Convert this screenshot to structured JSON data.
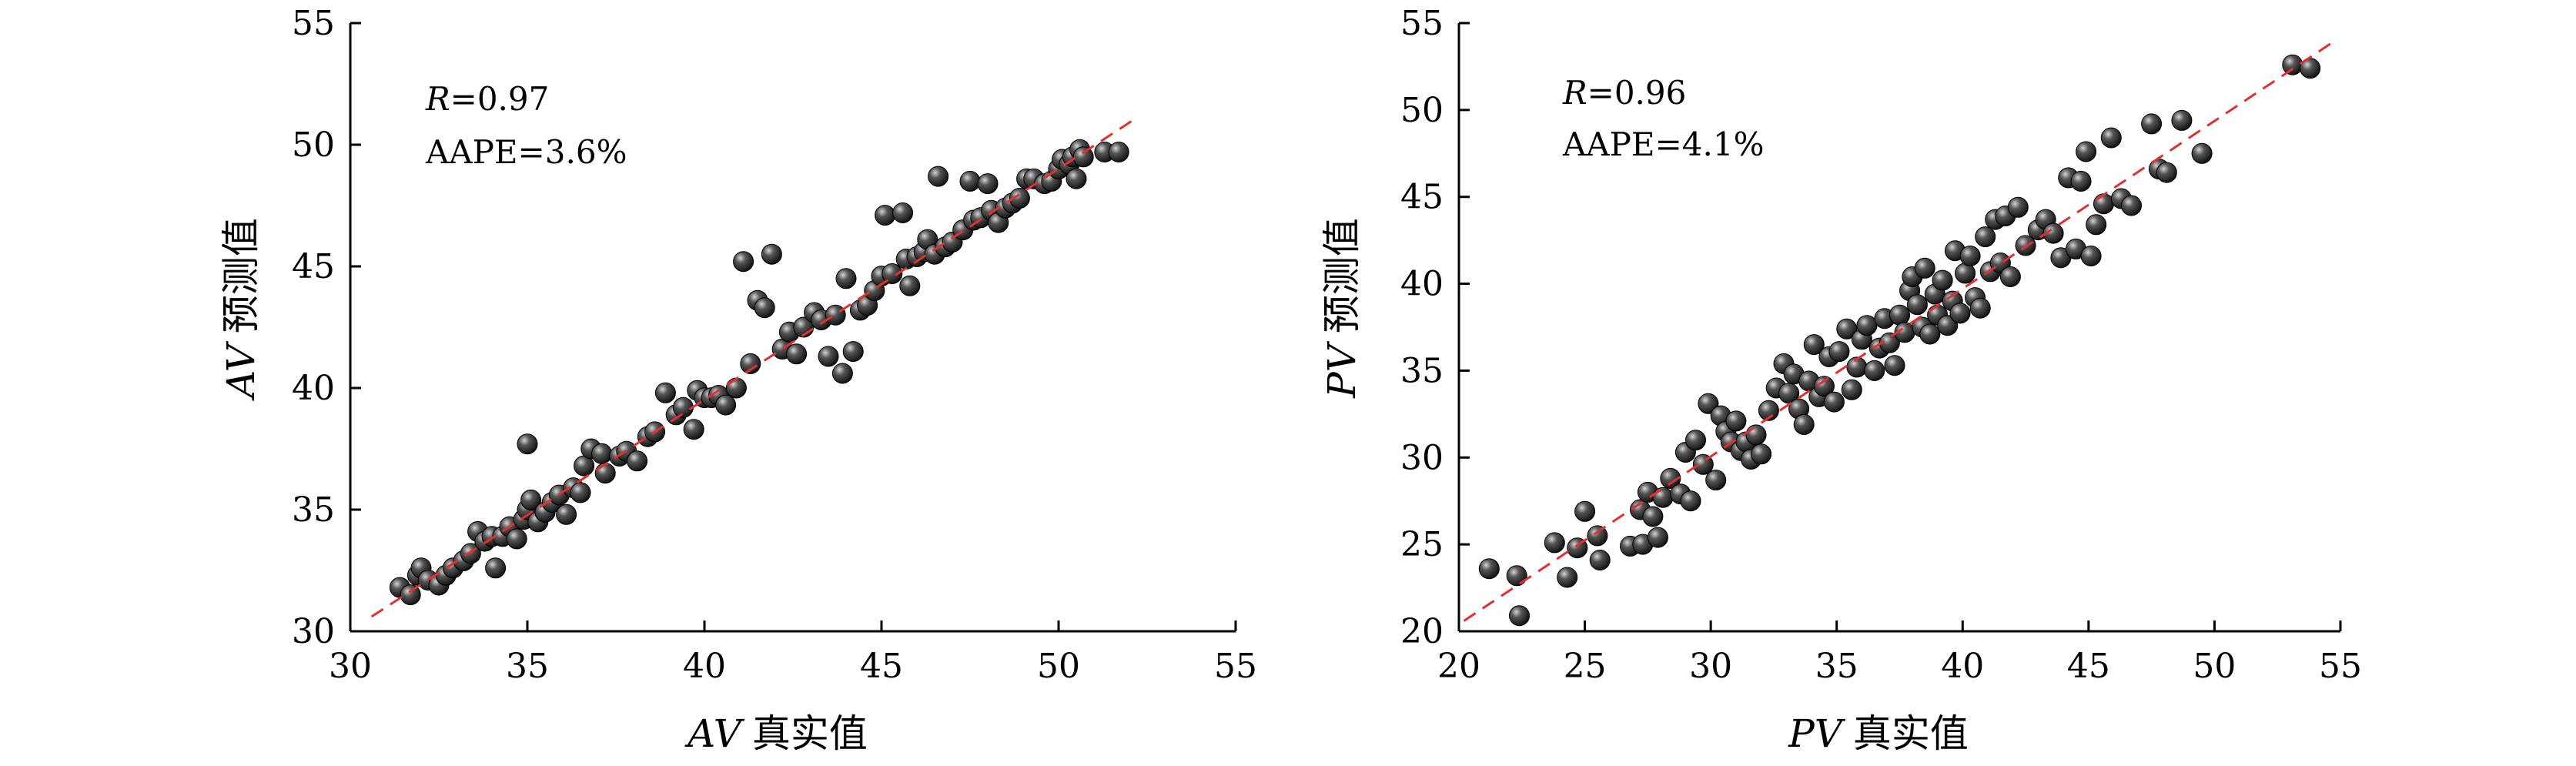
{
  "chart_data": [
    {
      "type": "scatter",
      "xlabel_var": "AV",
      "xlabel_text": "真实值",
      "ylabel_var": "AV",
      "ylabel_text": "预测值",
      "annotation_r_var": "R",
      "annotation_r_value": "=0.97",
      "annotation_aape": "AAPE=3.6%",
      "xlim": [
        30,
        55
      ],
      "ylim": [
        30,
        55
      ],
      "xticks": [
        30,
        35,
        40,
        45,
        50,
        55
      ],
      "yticks": [
        30,
        35,
        40,
        45,
        50,
        55
      ],
      "grid": false,
      "fit_line": {
        "style": "dashed",
        "color": "#e0312f",
        "from": [
          30.6,
          30.6
        ],
        "to": [
          52.2,
          51.1
        ]
      },
      "points": [
        [
          31.4,
          31.8
        ],
        [
          31.7,
          31.5
        ],
        [
          31.9,
          32.3
        ],
        [
          32.0,
          32.6
        ],
        [
          32.2,
          32.1
        ],
        [
          32.5,
          31.9
        ],
        [
          32.7,
          32.3
        ],
        [
          32.9,
          32.6
        ],
        [
          33.2,
          32.9
        ],
        [
          33.4,
          33.2
        ],
        [
          33.6,
          34.1
        ],
        [
          33.8,
          33.7
        ],
        [
          34.0,
          33.9
        ],
        [
          34.1,
          32.6
        ],
        [
          34.3,
          33.9
        ],
        [
          34.5,
          34.3
        ],
        [
          34.7,
          33.8
        ],
        [
          34.9,
          34.6
        ],
        [
          35.0,
          35.0
        ],
        [
          35.1,
          35.4
        ],
        [
          35.0,
          37.7
        ],
        [
          35.3,
          34.5
        ],
        [
          35.5,
          34.9
        ],
        [
          35.7,
          35.3
        ],
        [
          35.9,
          35.6
        ],
        [
          36.1,
          34.8
        ],
        [
          36.3,
          35.9
        ],
        [
          36.5,
          35.7
        ],
        [
          36.6,
          36.8
        ],
        [
          36.8,
          37.5
        ],
        [
          37.1,
          37.3
        ],
        [
          37.2,
          36.5
        ],
        [
          37.6,
          37.2
        ],
        [
          37.8,
          37.4
        ],
        [
          38.1,
          37.0
        ],
        [
          38.4,
          38.0
        ],
        [
          38.6,
          38.2
        ],
        [
          38.9,
          39.8
        ],
        [
          39.2,
          38.9
        ],
        [
          39.4,
          39.2
        ],
        [
          39.7,
          38.3
        ],
        [
          39.8,
          39.9
        ],
        [
          40.0,
          39.6
        ],
        [
          40.2,
          39.6
        ],
        [
          40.4,
          39.7
        ],
        [
          40.6,
          39.3
        ],
        [
          40.9,
          40.0
        ],
        [
          41.1,
          45.2
        ],
        [
          41.3,
          41.0
        ],
        [
          41.5,
          43.6
        ],
        [
          41.7,
          43.3
        ],
        [
          41.9,
          45.5
        ],
        [
          42.2,
          41.6
        ],
        [
          42.4,
          42.3
        ],
        [
          42.6,
          41.4
        ],
        [
          42.8,
          42.5
        ],
        [
          43.1,
          43.1
        ],
        [
          43.3,
          42.8
        ],
        [
          43.5,
          41.3
        ],
        [
          43.7,
          43.0
        ],
        [
          43.9,
          40.6
        ],
        [
          44.0,
          44.5
        ],
        [
          44.2,
          41.5
        ],
        [
          44.4,
          43.2
        ],
        [
          44.6,
          43.4
        ],
        [
          44.8,
          44.0
        ],
        [
          45.0,
          44.6
        ],
        [
          45.1,
          47.1
        ],
        [
          45.3,
          44.7
        ],
        [
          45.6,
          47.2
        ],
        [
          45.7,
          45.3
        ],
        [
          45.8,
          44.2
        ],
        [
          46.0,
          45.4
        ],
        [
          46.2,
          45.6
        ],
        [
          46.3,
          46.1
        ],
        [
          46.5,
          45.5
        ],
        [
          46.6,
          48.7
        ],
        [
          46.8,
          45.8
        ],
        [
          47.0,
          46.0
        ],
        [
          47.3,
          46.5
        ],
        [
          47.5,
          48.5
        ],
        [
          47.6,
          46.9
        ],
        [
          47.8,
          47.0
        ],
        [
          48.0,
          48.4
        ],
        [
          48.1,
          47.3
        ],
        [
          48.3,
          46.8
        ],
        [
          48.5,
          47.4
        ],
        [
          48.7,
          47.6
        ],
        [
          48.9,
          47.8
        ],
        [
          49.1,
          48.6
        ],
        [
          49.3,
          48.6
        ],
        [
          49.6,
          48.4
        ],
        [
          49.8,
          48.5
        ],
        [
          50.0,
          49.0
        ],
        [
          50.1,
          49.4
        ],
        [
          50.3,
          49.2
        ],
        [
          50.4,
          49.5
        ],
        [
          50.5,
          48.6
        ],
        [
          50.6,
          49.8
        ],
        [
          50.7,
          49.5
        ],
        [
          51.3,
          49.7
        ],
        [
          51.7,
          49.7
        ]
      ]
    },
    {
      "type": "scatter",
      "xlabel_var": "PV",
      "xlabel_text": "真实值",
      "ylabel_var": "PV",
      "ylabel_text": "预测值",
      "annotation_r_var": "R",
      "annotation_r_value": "=0.96",
      "annotation_aape": "AAPE=4.1%",
      "xlim": [
        20,
        55
      ],
      "ylim": [
        20,
        55
      ],
      "xticks": [
        20,
        25,
        30,
        35,
        40,
        45,
        50,
        55
      ],
      "yticks": [
        20,
        25,
        30,
        35,
        40,
        45,
        50,
        55
      ],
      "grid": false,
      "fit_line": {
        "style": "dashed",
        "color": "#e0312f",
        "from": [
          20.2,
          20.6
        ],
        "to": [
          54.8,
          54.0
        ]
      },
      "points": [
        [
          21.2,
          23.6
        ],
        [
          22.3,
          23.2
        ],
        [
          22.4,
          20.9
        ],
        [
          23.8,
          25.1
        ],
        [
          24.3,
          23.1
        ],
        [
          24.7,
          24.8
        ],
        [
          25.0,
          26.9
        ],
        [
          25.5,
          25.5
        ],
        [
          25.6,
          24.1
        ],
        [
          26.8,
          24.9
        ],
        [
          27.2,
          27.0
        ],
        [
          27.3,
          25.0
        ],
        [
          27.5,
          28.0
        ],
        [
          27.7,
          26.6
        ],
        [
          27.9,
          25.4
        ],
        [
          28.1,
          27.7
        ],
        [
          28.4,
          28.8
        ],
        [
          28.8,
          27.9
        ],
        [
          29.0,
          30.3
        ],
        [
          29.2,
          27.5
        ],
        [
          29.4,
          31.0
        ],
        [
          29.7,
          29.6
        ],
        [
          29.9,
          33.1
        ],
        [
          30.2,
          28.7
        ],
        [
          30.4,
          32.4
        ],
        [
          30.6,
          31.5
        ],
        [
          30.8,
          30.9
        ],
        [
          31.0,
          32.1
        ],
        [
          31.2,
          30.4
        ],
        [
          31.4,
          30.9
        ],
        [
          31.6,
          29.9
        ],
        [
          31.8,
          31.3
        ],
        [
          32.0,
          30.2
        ],
        [
          32.3,
          32.7
        ],
        [
          32.6,
          34.0
        ],
        [
          32.9,
          35.4
        ],
        [
          33.1,
          33.7
        ],
        [
          33.3,
          34.8
        ],
        [
          33.5,
          32.8
        ],
        [
          33.7,
          31.9
        ],
        [
          33.9,
          34.4
        ],
        [
          34.1,
          36.5
        ],
        [
          34.3,
          33.5
        ],
        [
          34.5,
          34.1
        ],
        [
          34.7,
          35.8
        ],
        [
          34.9,
          33.2
        ],
        [
          35.1,
          36.1
        ],
        [
          35.4,
          37.4
        ],
        [
          35.6,
          33.9
        ],
        [
          35.8,
          35.2
        ],
        [
          36.0,
          36.8
        ],
        [
          36.2,
          37.6
        ],
        [
          36.5,
          35.0
        ],
        [
          36.7,
          36.3
        ],
        [
          36.9,
          38.0
        ],
        [
          37.1,
          36.6
        ],
        [
          37.3,
          35.3
        ],
        [
          37.5,
          38.2
        ],
        [
          37.7,
          37.2
        ],
        [
          37.9,
          39.6
        ],
        [
          38.0,
          40.4
        ],
        [
          38.2,
          38.8
        ],
        [
          38.4,
          37.5
        ],
        [
          38.5,
          40.9
        ],
        [
          38.7,
          37.1
        ],
        [
          38.9,
          39.4
        ],
        [
          39.0,
          38.2
        ],
        [
          39.2,
          40.2
        ],
        [
          39.4,
          37.6
        ],
        [
          39.6,
          39.0
        ],
        [
          39.7,
          41.9
        ],
        [
          39.9,
          38.3
        ],
        [
          40.1,
          40.6
        ],
        [
          40.3,
          41.6
        ],
        [
          40.5,
          39.2
        ],
        [
          40.7,
          38.6
        ],
        [
          40.9,
          42.7
        ],
        [
          41.1,
          40.7
        ],
        [
          41.3,
          43.7
        ],
        [
          41.5,
          41.2
        ],
        [
          41.7,
          43.9
        ],
        [
          41.9,
          40.4
        ],
        [
          42.2,
          44.4
        ],
        [
          42.5,
          42.2
        ],
        [
          43.0,
          43.1
        ],
        [
          43.3,
          43.7
        ],
        [
          43.6,
          42.9
        ],
        [
          43.9,
          41.5
        ],
        [
          44.2,
          46.1
        ],
        [
          44.5,
          42.0
        ],
        [
          44.7,
          45.9
        ],
        [
          44.9,
          47.6
        ],
        [
          45.1,
          41.6
        ],
        [
          45.3,
          43.4
        ],
        [
          45.6,
          44.6
        ],
        [
          45.9,
          48.4
        ],
        [
          46.3,
          44.9
        ],
        [
          46.7,
          44.5
        ],
        [
          47.5,
          49.2
        ],
        [
          47.8,
          46.6
        ],
        [
          48.1,
          46.4
        ],
        [
          48.7,
          49.4
        ],
        [
          49.5,
          47.5
        ],
        [
          53.1,
          52.6
        ],
        [
          53.8,
          52.4
        ]
      ]
    }
  ]
}
